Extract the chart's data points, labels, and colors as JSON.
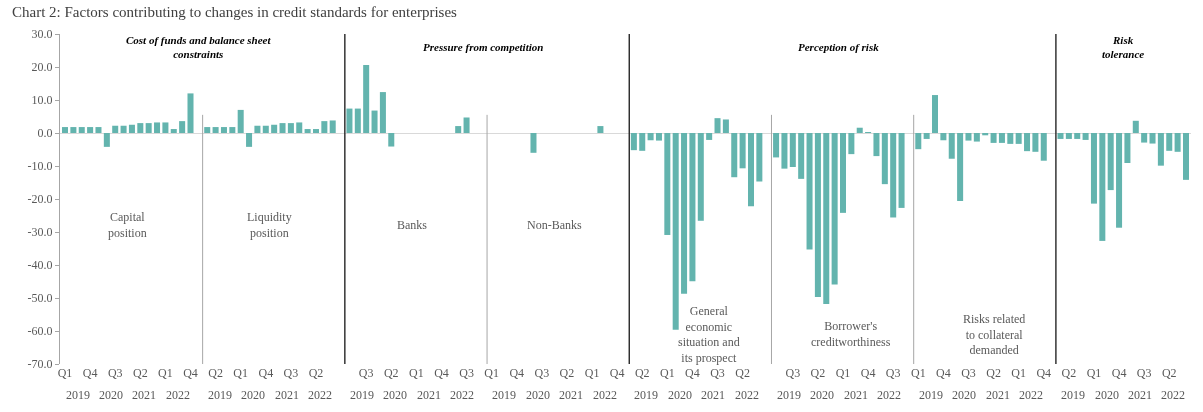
{
  "chart_data": {
    "type": "bar",
    "title": "Chart 2: Factors contributing to changes in credit standards for enterprises",
    "categories": [
      "Q1",
      null,
      null,
      "Q4",
      null,
      null,
      "Q3",
      null,
      null,
      "Q2",
      null,
      null,
      "Q1",
      null,
      null,
      "Q4",
      null,
      null,
      "Q2",
      null,
      null,
      "Q1",
      null,
      null,
      "Q4",
      null,
      null,
      "Q3",
      null,
      null,
      "Q2",
      null,
      null,
      null,
      null,
      null,
      "Q3",
      null,
      null,
      "Q2",
      null,
      null,
      "Q1",
      null,
      null,
      "Q4",
      null,
      null,
      "Q3",
      null,
      null,
      "Q1",
      null,
      null,
      "Q4",
      null,
      null,
      "Q3",
      null,
      null,
      "Q2",
      null,
      null,
      "Q1",
      null,
      null,
      "Q4",
      null,
      null,
      "Q2",
      null,
      null,
      "Q1",
      null,
      null,
      "Q4",
      null,
      null,
      "Q3",
      null,
      null,
      "Q2",
      null,
      null,
      null,
      null,
      null,
      "Q3",
      null,
      null,
      "Q2",
      null,
      null,
      "Q1",
      null,
      null,
      "Q4",
      null,
      null,
      "Q3",
      null,
      null,
      "Q1",
      null,
      null,
      "Q4",
      null,
      null,
      "Q3",
      null,
      null,
      "Q2",
      null,
      null,
      "Q1",
      null,
      null,
      "Q4",
      null,
      null,
      "Q2",
      null,
      null,
      "Q1",
      null,
      null,
      "Q4",
      null,
      null,
      "Q3",
      null,
      null,
      "Q2",
      null,
      null
    ],
    "values": [
      1.8,
      1.8,
      1.8,
      1.8,
      1.8,
      -4.2,
      2.2,
      2.2,
      2.5,
      3.0,
      3.0,
      3.2,
      3.2,
      1.2,
      3.6,
      12.0,
      null,
      1.8,
      1.8,
      1.8,
      1.8,
      7.0,
      -4.2,
      2.2,
      2.2,
      2.5,
      3.0,
      3.0,
      3.2,
      1.2,
      1.2,
      3.6,
      3.8,
      null,
      7.4,
      7.4,
      20.6,
      6.8,
      12.4,
      -4.1,
      0,
      0,
      0,
      0,
      0,
      0,
      0,
      2.1,
      4.7,
      0,
      null,
      0,
      0,
      0,
      0,
      0,
      -6.0,
      0,
      0,
      0,
      0,
      0,
      0,
      0,
      2.1,
      0,
      0,
      null,
      -5.2,
      -5.4,
      -2.2,
      -2.3,
      -30.9,
      -59.6,
      -48.7,
      -44.9,
      -26.6,
      -2.1,
      4.5,
      4.1,
      -13.4,
      -10.7,
      -22.2,
      -14.7,
      null,
      -7.4,
      -10.8,
      -10.3,
      -13.9,
      -35.3,
      -49.7,
      -51.8,
      -45.9,
      -24.2,
      -6.4,
      1.6,
      0.2,
      -7.0,
      -15.5,
      -25.6,
      -22.7,
      null,
      -4.9,
      -1.8,
      11.5,
      -2.2,
      -7.8,
      -20.6,
      -2.3,
      -2.6,
      -0.7,
      -3.0,
      -3.0,
      -3.3,
      -3.3,
      -5.5,
      -5.7,
      -8.4,
      null,
      -1.8,
      -1.8,
      -1.8,
      -2.1,
      -21.4,
      -32.7,
      -17.3,
      -28.7,
      -9.1,
      3.7,
      -2.9,
      -3.2,
      -9.9,
      -5.4,
      -5.7,
      -14.2
    ],
    "color": "#63b4ae",
    "ylim": [
      -70,
      30
    ],
    "yticks": [
      {
        "value": -70,
        "label": "-70.0"
      },
      {
        "value": -60,
        "label": "-60.0"
      },
      {
        "value": -50,
        "label": "-50.0"
      },
      {
        "value": -40,
        "label": "-40.0"
      },
      {
        "value": -30,
        "label": "-30.0"
      },
      {
        "value": -20,
        "label": "-20.0"
      },
      {
        "value": -10,
        "label": "-10.0"
      },
      {
        "value": 0,
        "label": "0.0"
      },
      {
        "value": 10,
        "label": "10.0"
      },
      {
        "value": 20,
        "label": "20.0"
      },
      {
        "value": 30,
        "label": "30.0"
      }
    ],
    "annotations": [
      "Cost of funds and balance sheet constraints",
      "Pressure from competition",
      "Perception of risk",
      "Risk tolerance",
      "Capital position",
      "Liquidity position",
      "Banks",
      "Non-Banks",
      "General economic situation and its prospect",
      "Borrower's creditworthiness",
      "Risks related to collateral demanded",
      "2019",
      "2020",
      "2021",
      "2022",
      "2019",
      "2020",
      "2021",
      "2022",
      "2019",
      "2020",
      "2021",
      "2022",
      "2019",
      "2020",
      "2021",
      "2022",
      "2019",
      "2020",
      "2021",
      "2022",
      "2019",
      "2020",
      "2021",
      "2022",
      "2019",
      "2020",
      "2021",
      "2022",
      "2019",
      "2020",
      "2021",
      "2022"
    ]
  }
}
